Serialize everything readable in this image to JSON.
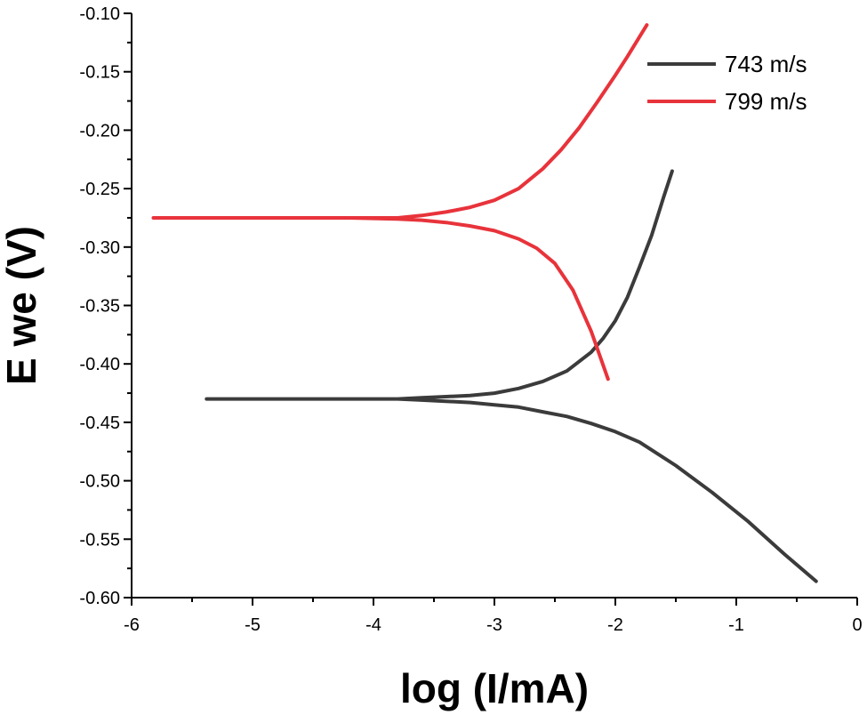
{
  "chart_data": {
    "type": "line",
    "xlabel": "log (I/mA)",
    "ylabel": "E we (V)",
    "xlim": [
      -6,
      0
    ],
    "ylim": [
      -0.6,
      -0.1
    ],
    "xticks": [
      -6,
      -5,
      -4,
      -3,
      -2,
      -1,
      0
    ],
    "xtick_labels": [
      "-6",
      "-5",
      "-4",
      "-3",
      "-2",
      "-1",
      "0"
    ],
    "yticks": [
      -0.6,
      -0.55,
      -0.5,
      -0.45,
      -0.4,
      -0.35,
      -0.3,
      -0.25,
      -0.2,
      -0.15,
      -0.1
    ],
    "ytick_labels": [
      "-0.60",
      "-0.55",
      "-0.50",
      "-0.45",
      "-0.40",
      "-0.35",
      "-0.30",
      "-0.25",
      "-0.20",
      "-0.15",
      "-0.10"
    ],
    "grid": false,
    "legend_position": "top-right",
    "series": [
      {
        "name": "743 m/s",
        "color": "#3b3b3b",
        "x": [
          -0.34,
          -0.6,
          -0.9,
          -1.2,
          -1.5,
          -1.8,
          -2.0,
          -2.2,
          -2.4,
          -2.6,
          -2.8,
          -3.0,
          -3.2,
          -3.4,
          -3.6,
          -3.8,
          -4.0,
          -4.3,
          -4.6,
          -5.0,
          -5.38,
          -5.0,
          -4.6,
          -4.3,
          -4.0,
          -3.8,
          -3.6,
          -3.4,
          -3.2,
          -3.0,
          -2.8,
          -2.6,
          -2.4,
          -2.2,
          -2.1,
          -2.0,
          -1.9,
          -1.8,
          -1.7,
          -1.6,
          -1.53
        ],
        "y": [
          -0.586,
          -0.563,
          -0.535,
          -0.51,
          -0.487,
          -0.467,
          -0.458,
          -0.451,
          -0.445,
          -0.441,
          -0.437,
          -0.435,
          -0.433,
          -0.432,
          -0.431,
          -0.43,
          -0.43,
          -0.43,
          -0.43,
          -0.43,
          -0.43,
          -0.43,
          -0.43,
          -0.43,
          -0.43,
          -0.43,
          -0.429,
          -0.428,
          -0.427,
          -0.425,
          -0.421,
          -0.415,
          -0.406,
          -0.39,
          -0.378,
          -0.363,
          -0.343,
          -0.317,
          -0.29,
          -0.257,
          -0.235
        ]
      },
      {
        "name": "799 m/s",
        "color": "#e8333b",
        "x": [
          -2.06,
          -2.2,
          -2.35,
          -2.5,
          -2.65,
          -2.8,
          -3.0,
          -3.2,
          -3.4,
          -3.6,
          -3.8,
          -4.2,
          -4.6,
          -5.0,
          -5.4,
          -5.82,
          -5.4,
          -5.0,
          -4.6,
          -4.2,
          -3.8,
          -3.6,
          -3.4,
          -3.2,
          -3.0,
          -2.8,
          -2.6,
          -2.45,
          -2.3,
          -2.15,
          -2.0,
          -1.9,
          -1.74
        ],
        "y": [
          -0.413,
          -0.372,
          -0.337,
          -0.314,
          -0.301,
          -0.293,
          -0.286,
          -0.282,
          -0.279,
          -0.277,
          -0.276,
          -0.275,
          -0.275,
          -0.275,
          -0.275,
          -0.275,
          -0.275,
          -0.275,
          -0.275,
          -0.275,
          -0.275,
          -0.273,
          -0.27,
          -0.266,
          -0.26,
          -0.25,
          -0.233,
          -0.217,
          -0.198,
          -0.176,
          -0.153,
          -0.137,
          -0.11
        ]
      }
    ]
  }
}
